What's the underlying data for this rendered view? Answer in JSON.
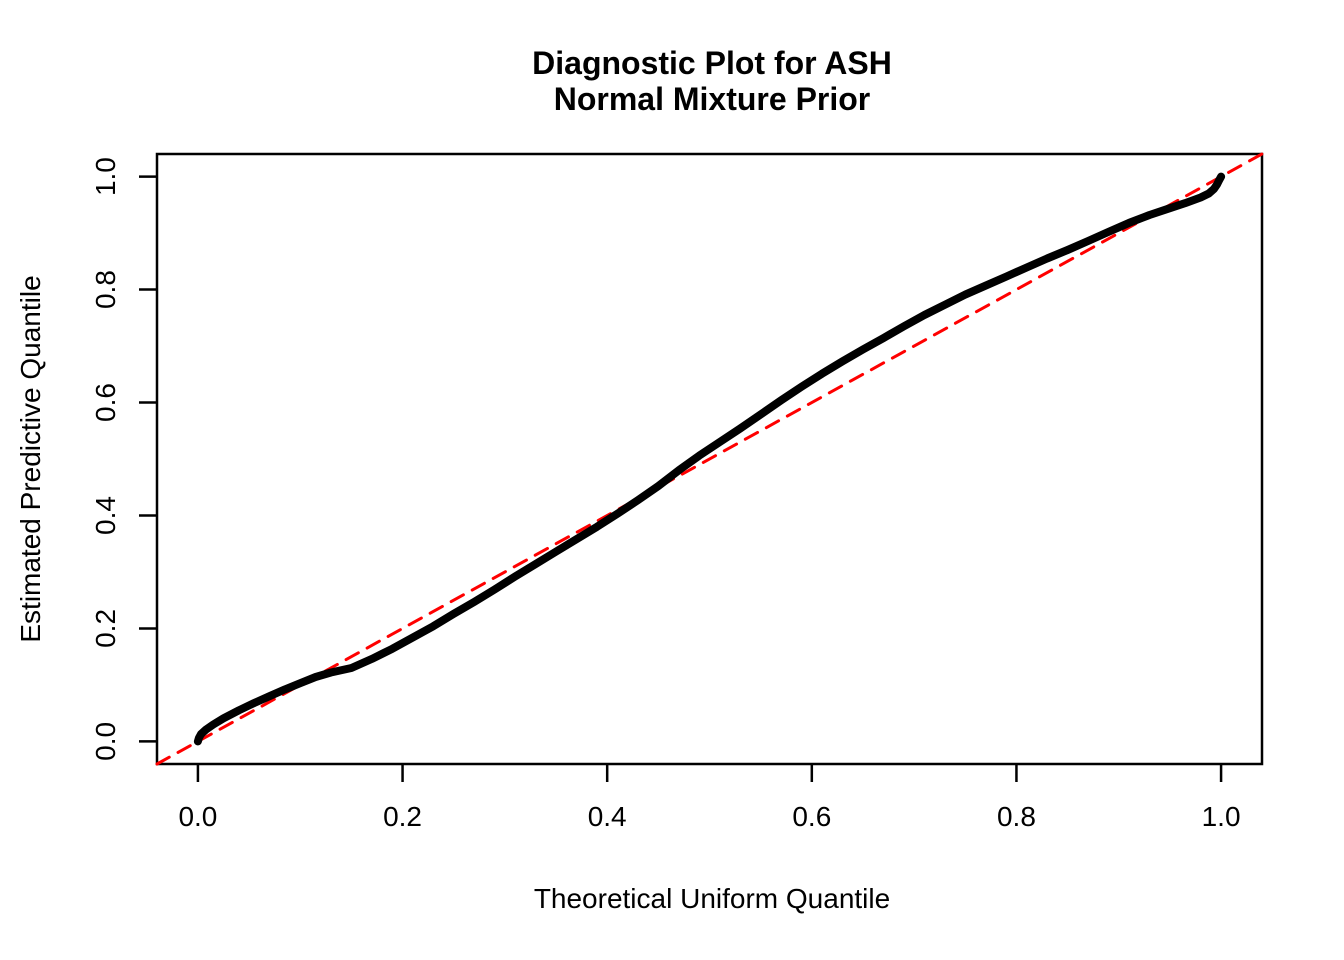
{
  "title": {
    "line1": "Diagnostic Plot for ASH",
    "line2": "Normal Mixture Prior"
  },
  "axes": {
    "x_label": "Theoretical Uniform Quantile",
    "y_label": "Estimated Predictive Quantile"
  },
  "colors": {
    "curve": "#000000",
    "reference_line": "#FF0000",
    "frame": "#000000",
    "background": "#FFFFFF",
    "text": "#000000"
  },
  "chart_data": {
    "type": "line",
    "title": "Diagnostic Plot for ASH\nNormal Mixture Prior",
    "xlabel": "Theoretical Uniform Quantile",
    "ylabel": "Estimated Predictive Quantile",
    "xlim": [
      -0.04,
      1.04
    ],
    "ylim": [
      -0.04,
      1.04
    ],
    "grid": false,
    "legend": null,
    "x_ticks": {
      "values": [
        0.0,
        0.2,
        0.4,
        0.6,
        0.8,
        1.0
      ],
      "labels": [
        "0.0",
        "0.2",
        "0.4",
        "0.6",
        "0.8",
        "1.0"
      ]
    },
    "y_ticks": {
      "values": [
        0.0,
        0.2,
        0.4,
        0.6,
        0.8,
        1.0
      ],
      "labels": [
        "0.0",
        "0.2",
        "0.4",
        "0.6",
        "0.8",
        "1.0"
      ]
    },
    "series": [
      {
        "name": "estimated-predictive-quantiles",
        "style": "solid",
        "color": "#000000",
        "stroke_width": 8,
        "points": [
          [
            0.0,
            0.0
          ],
          [
            0.001,
            0.006
          ],
          [
            0.003,
            0.013
          ],
          [
            0.008,
            0.021
          ],
          [
            0.015,
            0.03
          ],
          [
            0.025,
            0.041
          ],
          [
            0.04,
            0.055
          ],
          [
            0.055,
            0.068
          ],
          [
            0.07,
            0.08
          ],
          [
            0.085,
            0.092
          ],
          [
            0.1,
            0.103
          ],
          [
            0.115,
            0.114
          ],
          [
            0.13,
            0.122
          ],
          [
            0.15,
            0.13
          ],
          [
            0.17,
            0.146
          ],
          [
            0.19,
            0.164
          ],
          [
            0.21,
            0.184
          ],
          [
            0.23,
            0.204
          ],
          [
            0.25,
            0.226
          ],
          [
            0.27,
            0.247
          ],
          [
            0.29,
            0.269
          ],
          [
            0.31,
            0.292
          ],
          [
            0.33,
            0.314
          ],
          [
            0.35,
            0.336
          ],
          [
            0.37,
            0.358
          ],
          [
            0.39,
            0.38
          ],
          [
            0.41,
            0.403
          ],
          [
            0.43,
            0.427
          ],
          [
            0.45,
            0.452
          ],
          [
            0.47,
            0.48
          ],
          [
            0.49,
            0.506
          ],
          [
            0.51,
            0.53
          ],
          [
            0.53,
            0.554
          ],
          [
            0.55,
            0.579
          ],
          [
            0.57,
            0.604
          ],
          [
            0.59,
            0.628
          ],
          [
            0.61,
            0.651
          ],
          [
            0.63,
            0.673
          ],
          [
            0.65,
            0.694
          ],
          [
            0.67,
            0.714
          ],
          [
            0.69,
            0.735
          ],
          [
            0.71,
            0.755
          ],
          [
            0.73,
            0.773
          ],
          [
            0.75,
            0.791
          ],
          [
            0.77,
            0.807
          ],
          [
            0.79,
            0.823
          ],
          [
            0.81,
            0.839
          ],
          [
            0.83,
            0.855
          ],
          [
            0.85,
            0.87
          ],
          [
            0.87,
            0.886
          ],
          [
            0.89,
            0.902
          ],
          [
            0.91,
            0.918
          ],
          [
            0.93,
            0.932
          ],
          [
            0.95,
            0.944
          ],
          [
            0.965,
            0.953
          ],
          [
            0.98,
            0.963
          ],
          [
            0.988,
            0.97
          ],
          [
            0.993,
            0.978
          ],
          [
            0.996,
            0.986
          ],
          [
            0.998,
            0.993
          ],
          [
            1.0,
            1.0
          ]
        ]
      },
      {
        "name": "uniform-reference-diagonal",
        "style": "dashed",
        "color": "#FF0000",
        "stroke_width": 3,
        "dash": "14 10",
        "points": [
          [
            -0.04,
            -0.04
          ],
          [
            1.04,
            1.04
          ]
        ]
      }
    ]
  }
}
